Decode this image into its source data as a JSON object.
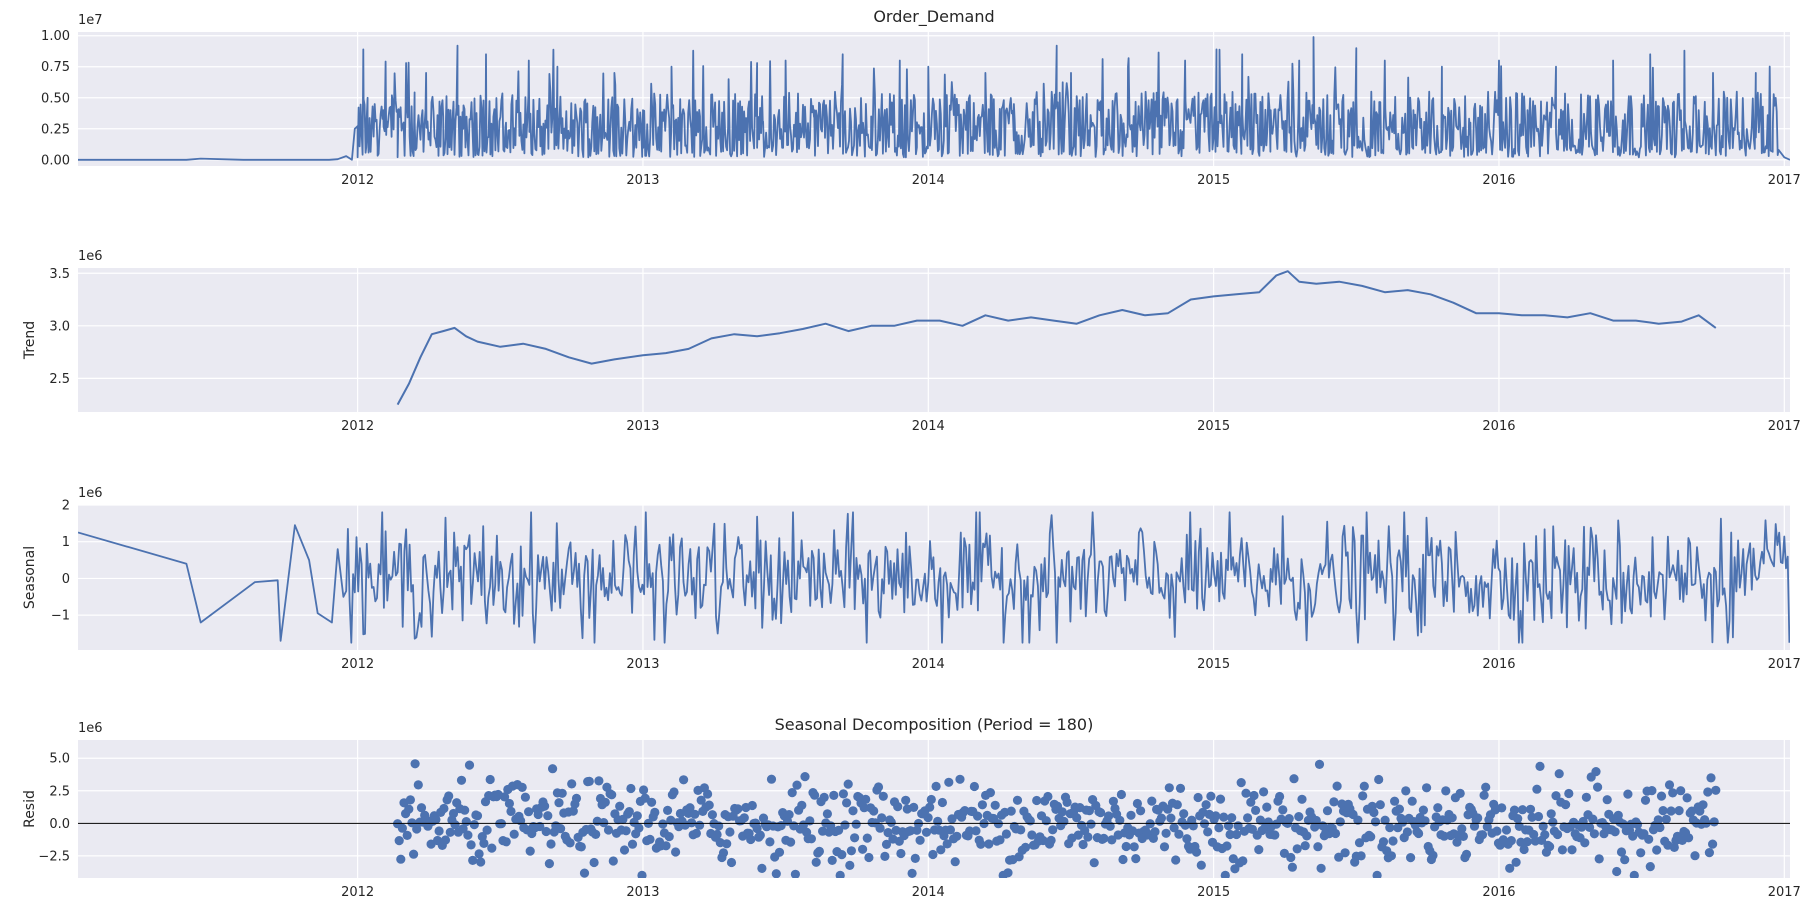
{
  "chart_data": [
    {
      "type": "line",
      "title": "Order_Demand",
      "ylabel": "",
      "exponent_label": "1e7",
      "ylim": [
        -0.05,
        1.03
      ],
      "yticks": [
        0.0,
        0.25,
        0.5,
        0.75,
        1.0
      ],
      "ytick_labels": [
        "0.00",
        "0.25",
        "0.50",
        "0.75",
        "1.00"
      ],
      "xlim": [
        2011.02,
        2017.02
      ],
      "xticks": [
        2012,
        2013,
        2014,
        2015,
        2016,
        2017
      ],
      "xtick_labels": [
        "2012",
        "2013",
        "2014",
        "2015",
        "2016",
        "2017"
      ],
      "grid": true,
      "series": [
        {
          "values_description_free": true,
          "x": [
            2011.02,
            2011.4,
            2011.45,
            2011.6,
            2011.9,
            2011.93,
            2011.96,
            2011.98,
            2011.99,
            2012.0,
            2012.01,
            2012.02,
            2012.03,
            2012.035,
            2012.04,
            2012.06,
            2012.07,
            2012.09,
            2012.1,
            2012.12,
            2012.14,
            2012.17,
            2012.2,
            2012.24,
            2012.3,
            2012.35,
            2012.37,
            2012.45,
            2012.52,
            2012.6,
            2012.65,
            2012.7,
            2012.8,
            2012.9,
            2013.0,
            2013.1,
            2013.2,
            2013.3,
            2013.4,
            2013.42,
            2013.5,
            2013.6,
            2013.7,
            2013.8,
            2013.9,
            2013.96,
            2014.0,
            2014.1,
            2014.2,
            2014.3,
            2014.45,
            2014.46,
            2014.5,
            2014.6,
            2014.7,
            2014.8,
            2014.9,
            2014.95,
            2015.01,
            2015.02,
            2015.1,
            2015.2,
            2015.3,
            2015.35,
            2015.37,
            2015.5,
            2015.58,
            2015.6,
            2015.7,
            2015.8,
            2015.9,
            2015.95,
            2016.0,
            2016.1,
            2016.2,
            2016.3,
            2016.4,
            2016.5,
            2016.53,
            2016.58,
            2016.65,
            2016.7,
            2016.75,
            2016.8,
            2016.9,
            2016.96,
            2016.98,
            2017.0,
            2017.02
          ],
          "y": [
            0.0,
            0.0,
            0.01,
            0.0,
            0.0,
            0.005,
            0.03,
            0.0,
            0.25,
            0.02,
            0.3,
            0.89,
            0.1,
            0.5,
            0.15,
            0.45,
            0.1,
            0.4,
            0.2,
            0.52,
            0.4,
            0.78,
            0.3,
            0.7,
            0.35,
            0.92,
            0.25,
            0.85,
            0.3,
            0.8,
            0.2,
            0.75,
            0.3,
            0.7,
            0.4,
            0.75,
            0.35,
            0.65,
            0.78,
            0.3,
            0.8,
            0.4,
            0.85,
            0.35,
            0.8,
            0.1,
            0.75,
            0.4,
            0.7,
            0.45,
            0.92,
            0.3,
            0.7,
            0.4,
            0.75,
            0.35,
            0.8,
            0.1,
            0.89,
            0.3,
            0.85,
            0.4,
            0.8,
            0.99,
            0.35,
            0.9,
            0.35,
            0.8,
            0.4,
            0.75,
            0.3,
            0.1,
            0.8,
            0.4,
            0.75,
            0.3,
            0.8,
            0.45,
            0.85,
            0.3,
            0.88,
            0.4,
            0.7,
            0.5,
            0.7,
            0.3,
            0.08,
            0.02,
            0.0
          ]
        }
      ]
    },
    {
      "type": "line",
      "title": "",
      "ylabel": "Trend",
      "exponent_label": "1e6",
      "ylim": [
        2.18,
        3.55
      ],
      "yticks": [
        2.5,
        3.0,
        3.5
      ],
      "ytick_labels": [
        "2.5",
        "3.0",
        "3.5"
      ],
      "xlim": [
        2011.02,
        2017.02
      ],
      "xticks": [
        2012,
        2013,
        2014,
        2015,
        2016,
        2017
      ],
      "xtick_labels": [
        "2012",
        "2013",
        "2014",
        "2015",
        "2016",
        "2017"
      ],
      "grid": true,
      "series": [
        {
          "x": [
            2012.14,
            2012.18,
            2012.22,
            2012.26,
            2012.3,
            2012.34,
            2012.38,
            2012.42,
            2012.5,
            2012.58,
            2012.66,
            2012.74,
            2012.82,
            2012.9,
            2013.0,
            2013.08,
            2013.16,
            2013.24,
            2013.32,
            2013.4,
            2013.48,
            2013.56,
            2013.64,
            2013.72,
            2013.8,
            2013.88,
            2013.96,
            2014.04,
            2014.12,
            2014.2,
            2014.28,
            2014.36,
            2014.44,
            2014.52,
            2014.6,
            2014.68,
            2014.76,
            2014.84,
            2014.92,
            2015.0,
            2015.08,
            2015.16,
            2015.22,
            2015.26,
            2015.3,
            2015.36,
            2015.44,
            2015.52,
            2015.6,
            2015.68,
            2015.76,
            2015.84,
            2015.92,
            2016.0,
            2016.08,
            2016.16,
            2016.24,
            2016.32,
            2016.4,
            2016.48,
            2016.56,
            2016.64,
            2016.7,
            2016.76
          ],
          "y": [
            2.25,
            2.45,
            2.7,
            2.92,
            2.95,
            2.98,
            2.9,
            2.85,
            2.8,
            2.83,
            2.78,
            2.7,
            2.64,
            2.68,
            2.72,
            2.74,
            2.78,
            2.88,
            2.92,
            2.9,
            2.93,
            2.97,
            3.02,
            2.95,
            3.0,
            3.0,
            3.05,
            3.05,
            3.0,
            3.1,
            3.05,
            3.08,
            3.05,
            3.02,
            3.1,
            3.15,
            3.1,
            3.12,
            3.25,
            3.28,
            3.3,
            3.32,
            3.48,
            3.52,
            3.42,
            3.4,
            3.42,
            3.38,
            3.32,
            3.34,
            3.3,
            3.22,
            3.12,
            3.12,
            3.1,
            3.1,
            3.08,
            3.12,
            3.05,
            3.05,
            3.02,
            3.04,
            3.1,
            2.98
          ]
        }
      ]
    },
    {
      "type": "line",
      "title": "",
      "ylabel": "Seasonal",
      "exponent_label": "1e6",
      "ylim": [
        -1.95,
        2.0
      ],
      "yticks": [
        -1,
        0,
        1,
        2
      ],
      "ytick_labels": [
        "−1",
        "0",
        "1",
        "2"
      ],
      "xlim": [
        2011.02,
        2017.02
      ],
      "xticks": [
        2012,
        2013,
        2014,
        2015,
        2016,
        2017
      ],
      "xtick_labels": [
        "2012",
        "2013",
        "2014",
        "2015",
        "2016",
        "2017"
      ],
      "grid": true,
      "series": [
        {
          "x": [
            2011.02,
            2011.4,
            2011.45,
            2011.64,
            2011.72,
            2011.73,
            2011.78,
            2011.83,
            2011.86,
            2011.91,
            2011.93,
            2011.95
          ],
          "y": [
            1.25,
            0.4,
            -1.2,
            -0.1,
            -0.05,
            -1.7,
            1.45,
            0.5,
            -0.95,
            -1.2,
            0.8,
            -0.5
          ]
        }
      ]
    },
    {
      "type": "scatter",
      "title": "Seasonal Decomposition (Period = 180)",
      "ylabel": "Resid",
      "exponent_label": "1e6",
      "ylim": [
        -4.2,
        6.4
      ],
      "yticks": [
        -2.5,
        0.0,
        2.5,
        5.0
      ],
      "ytick_labels": [
        "−2.5",
        "0.0",
        "2.5",
        "5.0"
      ],
      "xlim": [
        2011.02,
        2017.02
      ],
      "xticks": [
        2012,
        2013,
        2014,
        2015,
        2016,
        2017
      ],
      "xtick_labels": [
        "2012",
        "2013",
        "2014",
        "2015",
        "2016",
        "2017"
      ],
      "grid": true,
      "zero_line": true,
      "x_range_of_points": [
        2012.14,
        2016.76
      ],
      "series": []
    }
  ],
  "colors": {
    "line": "#4c72b0",
    "axes_bg": "#eaeaf2",
    "grid": "#ffffff",
    "text": "#262626",
    "zero_line": "#000000"
  }
}
